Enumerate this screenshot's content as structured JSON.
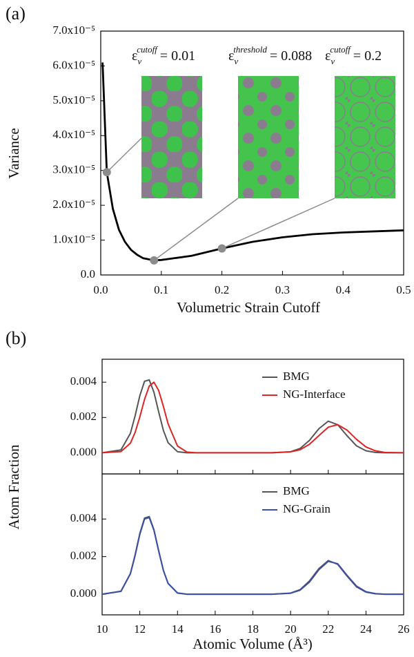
{
  "chart_data": [
    {
      "type": "line",
      "panel_label": "(a)",
      "xlabel": "Volumetric Strain Cutoff",
      "ylabel": "Variance",
      "xlim": [
        0,
        0.5
      ],
      "ylim": [
        0,
        7e-05
      ],
      "xticks": [
        {
          "value": 0,
          "label": "0.0"
        },
        0.1,
        0.2,
        0.3,
        0.4,
        0.5
      ],
      "yticks": [
        {
          "value": 0,
          "label": "0.0"
        },
        {
          "value": 1e-05,
          "label": "1.0x10⁻⁵"
        },
        {
          "value": 2e-05,
          "label": "2.0x10⁻⁵"
        },
        {
          "value": 3e-05,
          "label": "3.0x10⁻⁵"
        },
        {
          "value": 4e-05,
          "label": "4.0x10⁻⁵"
        },
        {
          "value": 5e-05,
          "label": "5.0x10⁻⁵"
        },
        {
          "value": 6e-05,
          "label": "6.0x10⁻⁵"
        },
        {
          "value": 7e-05,
          "label": "7.0x10⁻⁵"
        }
      ],
      "x": [
        0.003,
        0.01,
        0.02,
        0.03,
        0.04,
        0.05,
        0.06,
        0.07,
        0.088,
        0.1,
        0.15,
        0.2,
        0.25,
        0.3,
        0.35,
        0.4,
        0.45,
        0.5
      ],
      "values": [
        6.1e-05,
        2.95e-05,
        1.9e-05,
        1.3e-05,
        9.5e-06,
        7.2e-06,
        5.8e-06,
        4.8e-06,
        4.2e-06,
        4.3e-06,
        5.5e-06,
        7.6e-06,
        9.5e-06,
        1.08e-05,
        1.17e-05,
        1.22e-05,
        1.25e-05,
        1.28e-05
      ],
      "color": "#000000",
      "marker_color": "#8c8c8c",
      "annotations": [
        {
          "symbol": "ε",
          "subscript": "v",
          "superscript": "cutoff",
          "text": "= 0.01",
          "x": 0.01,
          "y": 2.95e-05
        },
        {
          "symbol": "ε",
          "subscript": "v",
          "superscript": "threshold",
          "text": "= 0.088",
          "x": 0.088,
          "y": 4.2e-06
        },
        {
          "symbol": "ε",
          "subscript": "v",
          "superscript": "cutoff",
          "text": "= 0.2",
          "x": 0.2,
          "y": 7.6e-06
        }
      ]
    },
    {
      "type": "line",
      "panel_label": "(b)",
      "ylabel": "Atom Fraction",
      "xlim": [
        10,
        26
      ],
      "ylim": [
        -0.0012,
        0.0053
      ],
      "xtick_labels": false,
      "xticks": [
        10,
        12,
        14,
        16,
        18,
        20,
        22,
        24,
        26
      ],
      "yticks": [
        {
          "value": 0,
          "label": "0.000"
        },
        {
          "value": 0.002,
          "label": "0.002"
        },
        {
          "value": 0.004,
          "label": "0.004"
        }
      ],
      "legend": "upper right",
      "x": [
        10,
        11,
        11.5,
        11.75,
        12,
        12.25,
        12.5,
        12.75,
        13,
        13.25,
        13.5,
        14,
        14.5,
        15,
        16,
        18,
        19,
        20,
        20.5,
        21,
        21.5,
        22,
        22.5,
        23,
        23.5,
        24,
        24.5,
        25,
        26
      ],
      "series": [
        {
          "name": "BMG",
          "color": "#555555",
          "values": [
            0,
            0.00016,
            0.0011,
            0.00209,
            0.00323,
            0.00405,
            0.00413,
            0.00343,
            0.00232,
            0.00127,
            0.00057,
            6e-05,
            0,
            0,
            0,
            0,
            0,
            6e-05,
            0.00024,
            0.0007,
            0.00136,
            0.00179,
            0.00159,
            0.00096,
            0.00039,
            0.00011,
            2e-05,
            0,
            0
          ]
        },
        {
          "name": "NG-Interface",
          "color": "#e02424",
          "values": [
            0,
            7e-05,
            0.00054,
            0.00115,
            0.00203,
            0.00302,
            0.00378,
            0.004,
            0.00353,
            0.00263,
            0.00164,
            0.00038,
            4e-05,
            0,
            0,
            0,
            0,
            5e-05,
            0.00017,
            0.00048,
            0.00097,
            0.00145,
            0.00159,
            0.00128,
            0.00076,
            0.00033,
            0.00011,
            2e-05,
            0
          ]
        }
      ]
    },
    {
      "type": "line",
      "xlabel": "Atomic Volume (Å³)",
      "xlim": [
        10,
        26
      ],
      "ylim": [
        -0.0011,
        0.0064
      ],
      "xtick_labels": true,
      "xticks": [
        10,
        12,
        14,
        16,
        18,
        20,
        22,
        24,
        26
      ],
      "yticks": [
        {
          "value": 0,
          "label": "0.000"
        },
        {
          "value": 0.002,
          "label": "0.002"
        },
        {
          "value": 0.004,
          "label": "0.004"
        }
      ],
      "legend": "upper right",
      "x": [
        10,
        11,
        11.5,
        11.75,
        12,
        12.25,
        12.5,
        12.75,
        13,
        13.25,
        13.5,
        14,
        14.5,
        15,
        16,
        18,
        19,
        20,
        20.5,
        21,
        21.5,
        22,
        22.5,
        23,
        23.5,
        24,
        24.5,
        25,
        26
      ],
      "series": [
        {
          "name": "BMG",
          "color": "#555555",
          "values": [
            0,
            0.00016,
            0.0011,
            0.00209,
            0.00323,
            0.00405,
            0.00413,
            0.00343,
            0.00232,
            0.00127,
            0.00057,
            6e-05,
            0,
            0,
            0,
            0,
            0,
            6e-05,
            0.00024,
            0.0007,
            0.00136,
            0.00179,
            0.00159,
            0.00096,
            0.00039,
            0.00011,
            2e-05,
            0,
            0
          ]
        },
        {
          "name": "NG-Grain",
          "color": "#3b4fa8",
          "values": [
            0,
            0.00015,
            0.00108,
            0.00205,
            0.00318,
            0.004,
            0.00408,
            0.0034,
            0.0023,
            0.00127,
            0.00058,
            7e-05,
            0,
            0,
            0,
            0,
            0,
            5e-05,
            0.00021,
            0.00064,
            0.0013,
            0.00175,
            0.00162,
            0.001,
            0.00043,
            0.00013,
            3e-05,
            0,
            0
          ]
        }
      ]
    }
  ]
}
